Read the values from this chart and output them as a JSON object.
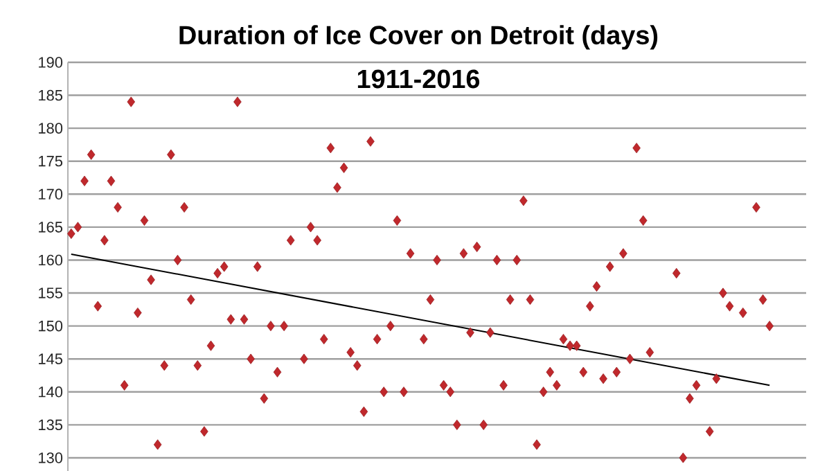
{
  "chart_data": {
    "type": "scatter",
    "title": "Duration of Ice Cover on Detroit (days)",
    "subtitle": "1911-2016",
    "categories": [
      null,
      null,
      null,
      null,
      null,
      null,
      null,
      null,
      null,
      null,
      null,
      null,
      null,
      null,
      null,
      null,
      null,
      null,
      null,
      null,
      null,
      null,
      null,
      null,
      null,
      null,
      null,
      null,
      null,
      null,
      null,
      null,
      null,
      null,
      null,
      null,
      null,
      null,
      null,
      null,
      null,
      null,
      null,
      null,
      null,
      null,
      null,
      null,
      null,
      null,
      null,
      null,
      null,
      null,
      null,
      null,
      null,
      null,
      null,
      null,
      null,
      null,
      null,
      null,
      null,
      null,
      null,
      null,
      null,
      null,
      null,
      null,
      null,
      null,
      null,
      null,
      null,
      null,
      null,
      null,
      null,
      null,
      null,
      null,
      null,
      null,
      null,
      null,
      null,
      null,
      null,
      null,
      null,
      null,
      null,
      null,
      null,
      null,
      null,
      null,
      null,
      null,
      null,
      null,
      null,
      null,
      null,
      null,
      null,
      null,
      null
    ],
    "ylim": [
      128,
      190
    ],
    "yticks": [
      130,
      135,
      140,
      145,
      150,
      155,
      160,
      165,
      170,
      175,
      180,
      185,
      190
    ],
    "grid": "y",
    "tick_labels": "y",
    "marker": "diamond",
    "series": [
      {
        "color": "#c0282c",
        "values": [
          164,
          165,
          172,
          176,
          153,
          163,
          172,
          168,
          141,
          184,
          152,
          166,
          157,
          132,
          144,
          176,
          160,
          168,
          154,
          144,
          134,
          147,
          158,
          159,
          151,
          184,
          151,
          145,
          159,
          139,
          150,
          143,
          150,
          163,
          null,
          145,
          165,
          163,
          148,
          177,
          171,
          174,
          146,
          144,
          137,
          178,
          148,
          140,
          150,
          166,
          140,
          161,
          null,
          148,
          154,
          160,
          141,
          140,
          135,
          161,
          149,
          162,
          135,
          149,
          160,
          141,
          154,
          160,
          169,
          154,
          132,
          140,
          143,
          141,
          148,
          147,
          147,
          143,
          153,
          156,
          142,
          159,
          143,
          161,
          145,
          177,
          166,
          146,
          null,
          null,
          null,
          158,
          130,
          139,
          141,
          null,
          134,
          142,
          155,
          153,
          null,
          152,
          null,
          168,
          154,
          150,
          null,
          null,
          null,
          null,
          null
        ]
      },
      {
        "type": "line",
        "color": "#000000",
        "marker": "none",
        "values": [
          160.9,
          null,
          null,
          null,
          null,
          null,
          null,
          null,
          null,
          null,
          null,
          null,
          null,
          null,
          null,
          null,
          null,
          null,
          null,
          null,
          null,
          null,
          null,
          null,
          null,
          null,
          null,
          null,
          null,
          null,
          null,
          null,
          null,
          null,
          null,
          null,
          null,
          null,
          null,
          null,
          null,
          null,
          null,
          null,
          null,
          null,
          null,
          null,
          null,
          null,
          null,
          null,
          null,
          null,
          null,
          null,
          null,
          null,
          null,
          null,
          null,
          null,
          null,
          null,
          null,
          null,
          null,
          null,
          null,
          null,
          null,
          null,
          null,
          null,
          null,
          null,
          null,
          null,
          null,
          null,
          null,
          null,
          null,
          null,
          null,
          null,
          null,
          null,
          null,
          null,
          null,
          null,
          null,
          null,
          null,
          null,
          null,
          null,
          null,
          null,
          null,
          null,
          null,
          null,
          null,
          141,
          null,
          null,
          null,
          null,
          null
        ]
      }
    ]
  }
}
